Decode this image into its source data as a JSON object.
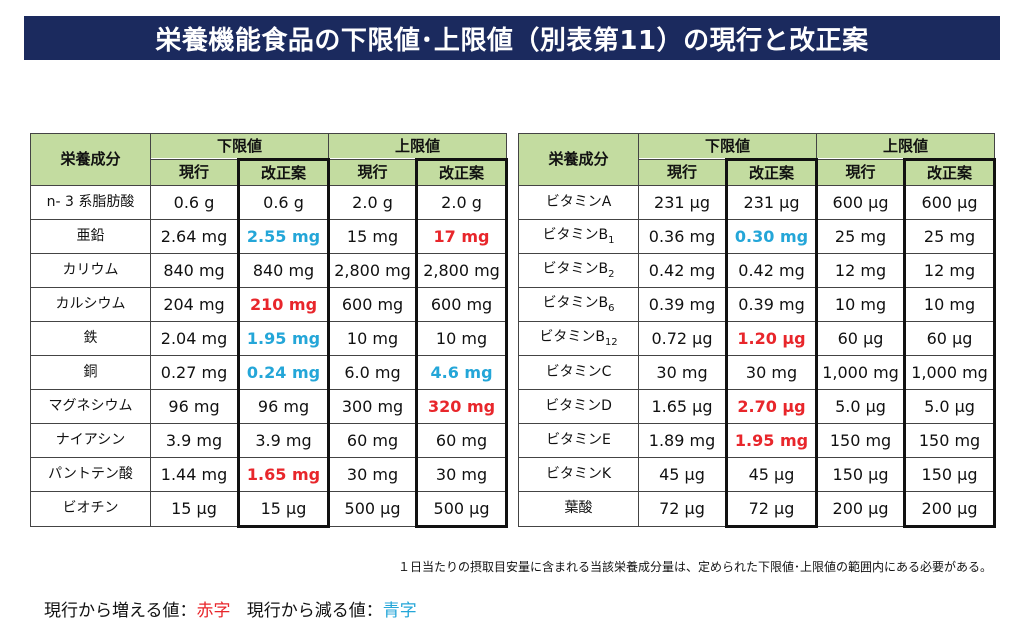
{
  "title": "栄養機能食品の下限値･上限値（別表第11）の現行と改正案",
  "headers": {
    "nutrient": "栄養成分",
    "lower": "下限値",
    "upper": "上限値",
    "current": "現行",
    "proposed": "改正案"
  },
  "left_rows": [
    {
      "name": "n- 3 系脂肪酸",
      "lc": "0.6 g",
      "lp": "0.6 g",
      "lp_style": "",
      "uc": "2.0 g",
      "up": "2.0 g",
      "up_style": ""
    },
    {
      "name": "亜鉛",
      "lc": "2.64 mg",
      "lp": "2.55 mg",
      "lp_style": "blue",
      "uc": "15 mg",
      "up": "17 mg",
      "up_style": "red"
    },
    {
      "name": "カリウム",
      "lc": "840 mg",
      "lp": "840 mg",
      "lp_style": "",
      "uc": "2,800 mg",
      "up": "2,800 mg",
      "up_style": ""
    },
    {
      "name": "カルシウム",
      "lc": "204 mg",
      "lp": "210 mg",
      "lp_style": "red",
      "uc": "600 mg",
      "up": "600 mg",
      "up_style": ""
    },
    {
      "name": "鉄",
      "lc": "2.04 mg",
      "lp": "1.95 mg",
      "lp_style": "blue",
      "uc": "10 mg",
      "up": "10 mg",
      "up_style": ""
    },
    {
      "name": "銅",
      "lc": "0.27 mg",
      "lp": "0.24 mg",
      "lp_style": "blue",
      "uc": "6.0 mg",
      "up": "4.6 mg",
      "up_style": "blue"
    },
    {
      "name": "マグネシウム",
      "lc": "96 mg",
      "lp": "96 mg",
      "lp_style": "",
      "uc": "300 mg",
      "up": "320 mg",
      "up_style": "red"
    },
    {
      "name": "ナイアシン",
      "lc": "3.9 mg",
      "lp": "3.9 mg",
      "lp_style": "",
      "uc": "60 mg",
      "up": "60 mg",
      "up_style": ""
    },
    {
      "name": "パントテン酸",
      "lc": "1.44 mg",
      "lp": "1.65 mg",
      "lp_style": "red",
      "uc": "30 mg",
      "up": "30 mg",
      "up_style": ""
    },
    {
      "name": "ビオチン",
      "lc": "15 μg",
      "lp": "15 μg",
      "lp_style": "",
      "uc": "500 μg",
      "up": "500 μg",
      "up_style": ""
    }
  ],
  "right_rows": [
    {
      "name": "ビタミンA",
      "lc": "231 μg",
      "lp": "231 μg",
      "lp_style": "",
      "uc": "600 μg",
      "up": "600 μg",
      "up_style": ""
    },
    {
      "name": "ビタミンB",
      "sub": "1",
      "lc": "0.36 mg",
      "lp": "0.30 mg",
      "lp_style": "blue",
      "uc": "25 mg",
      "up": "25 mg",
      "up_style": ""
    },
    {
      "name": "ビタミンB",
      "sub": "2",
      "lc": "0.42 mg",
      "lp": "0.42 mg",
      "lp_style": "",
      "uc": "12 mg",
      "up": "12 mg",
      "up_style": ""
    },
    {
      "name": "ビタミンB",
      "sub": "6",
      "lc": "0.39 mg",
      "lp": "0.39 mg",
      "lp_style": "",
      "uc": "10 mg",
      "up": "10 mg",
      "up_style": ""
    },
    {
      "name": "ビタミンB",
      "sub": "12",
      "lc": "0.72 μg",
      "lp": "1.20 μg",
      "lp_style": "red",
      "uc": "60 μg",
      "up": "60 μg",
      "up_style": ""
    },
    {
      "name": "ビタミンC",
      "lc": "30 mg",
      "lp": "30 mg",
      "lp_style": "",
      "uc": "1,000 mg",
      "up": "1,000 mg",
      "up_style": ""
    },
    {
      "name": "ビタミンD",
      "lc": "1.65 μg",
      "lp": "2.70 μg",
      "lp_style": "red",
      "uc": "5.0 μg",
      "up": "5.0 μg",
      "up_style": ""
    },
    {
      "name": "ビタミンE",
      "lc": "1.89 mg",
      "lp": "1.95 mg",
      "lp_style": "red",
      "uc": "150 mg",
      "up": "150 mg",
      "up_style": ""
    },
    {
      "name": "ビタミンK",
      "lc": "45 μg",
      "lp": "45 μg",
      "lp_style": "",
      "uc": "150 μg",
      "up": "150 μg",
      "up_style": ""
    },
    {
      "name": "葉酸",
      "lc": "72 μg",
      "lp": "72 μg",
      "lp_style": "",
      "uc": "200 μg",
      "up": "200 μg",
      "up_style": ""
    }
  ],
  "footnote": "１日当たりの摂取目安量に含まれる当該栄養成分量は、定められた下限値･上限値の範囲内にある必要がある。",
  "legend": {
    "increase_prefix": "現行から増える値：",
    "increase_word": "赤字",
    "decrease_prefix": "現行から減る値：",
    "decrease_word": "青字"
  },
  "colors": {
    "title_bg": "#1b2a5e",
    "header_bg": "#c3dca0",
    "increase": "#e8262b",
    "decrease": "#24a6d8"
  }
}
